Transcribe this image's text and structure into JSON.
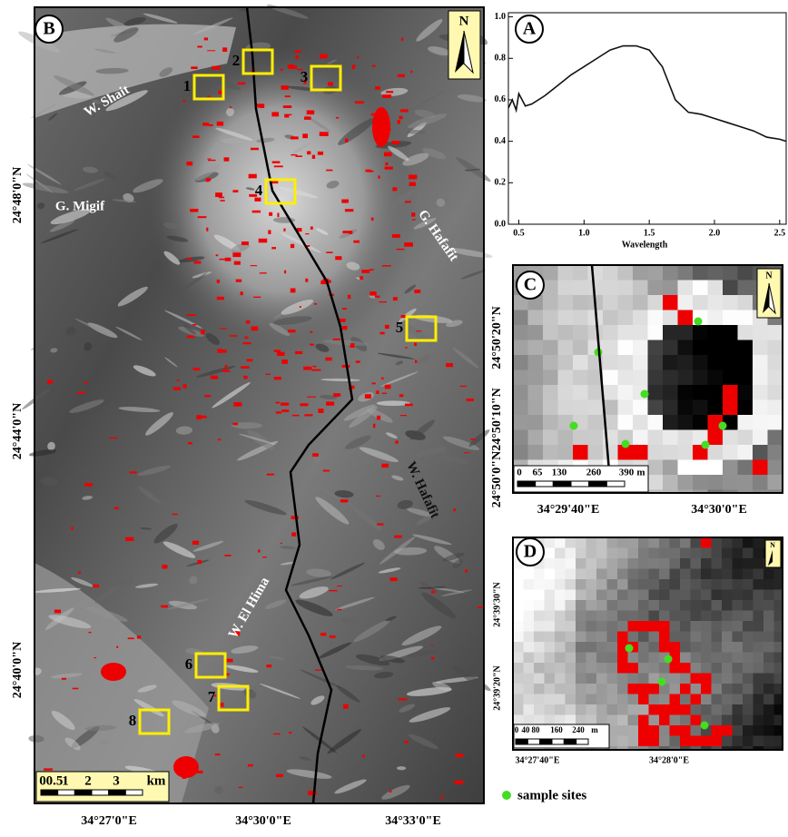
{
  "chart_data": {
    "type": "line",
    "panel_label": "A",
    "x_label": "Wavelength",
    "color": "#111111",
    "x": [
      0.42,
      0.45,
      0.48,
      0.5,
      0.55,
      0.6,
      0.7,
      0.8,
      0.9,
      1.0,
      1.1,
      1.2,
      1.3,
      1.4,
      1.5,
      1.6,
      1.7,
      1.8,
      1.9,
      2.0,
      2.1,
      2.2,
      2.3,
      2.4,
      2.5,
      2.55
    ],
    "values": [
      0.56,
      0.6,
      0.55,
      0.63,
      0.57,
      0.58,
      0.62,
      0.67,
      0.72,
      0.76,
      0.8,
      0.84,
      0.86,
      0.86,
      0.84,
      0.76,
      0.6,
      0.54,
      0.53,
      0.51,
      0.49,
      0.47,
      0.45,
      0.42,
      0.41,
      0.4
    ],
    "xlim": [
      0.42,
      2.55
    ],
    "xticks": [
      0.5,
      {
        "value": 1,
        "label": "1.0"
      },
      1.5,
      {
        "value": 2,
        "label": "2.0"
      },
      2.5
    ],
    "ylim": [
      0,
      1.02
    ],
    "yticks": [
      {
        "value": 0,
        "label": "0.0"
      },
      0.2,
      0.4,
      0.6,
      0.8,
      {
        "value": 1,
        "label": "1.0"
      }
    ]
  },
  "panel_b": {
    "label": "B",
    "north": "N",
    "place_names": [
      "W. Shait",
      "G. Migif",
      "G. Hafafit",
      "W. Hafafit",
      "W. El Hima"
    ],
    "sites": [
      "1",
      "2",
      "3",
      "4",
      "5",
      "6",
      "7",
      "8"
    ],
    "latitudes": [
      "24°48'0\"N",
      "24°44'0\"N",
      "24°40'0\"N"
    ],
    "longitudes": [
      "34°27'0\"E",
      "34°30'0\"E",
      "34°33'0\"E"
    ],
    "scale": [
      "0",
      "0.5",
      "1",
      "2",
      "3",
      "km"
    ]
  },
  "panel_c": {
    "label": "C",
    "north": "N",
    "latitudes": [
      "24°50'20\"N",
      "24°50'10\"N",
      "24°50'0\"N"
    ],
    "longitudes": [
      "34°29'40\"E",
      "34°30'0\"E"
    ],
    "scale": [
      "0",
      "65",
      "130",
      "260",
      "390",
      "m"
    ]
  },
  "panel_d": {
    "label": "D",
    "north": "N",
    "latitudes": [
      "24°39'30\"N",
      "24°39'20\"N"
    ],
    "longitudes": [
      "34°27'40\"E",
      "34°28'0\"E"
    ],
    "scale": [
      "0",
      "40",
      "80",
      "160",
      "240",
      "m"
    ]
  },
  "legend": "sample sites"
}
